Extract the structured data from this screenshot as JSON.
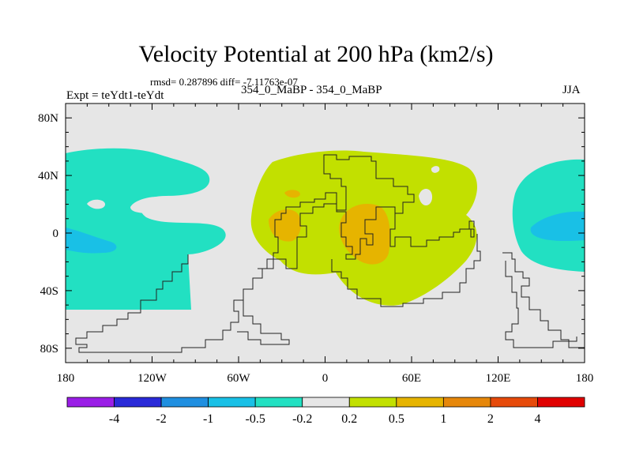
{
  "chart_data": {
    "type": "contour_map",
    "title": "Velocity Potential at 200 hPa (km2/s)",
    "stats": "rmsd= 0.287896 diff= -7.11763e-07",
    "left_label": "Expt = teYdt1-teYdt",
    "center_label": "354_0_MaBP - 354_0_MaBP",
    "right_label": "JJA",
    "xlabels": [
      "180",
      "120W",
      "60W",
      "0",
      "60E",
      "120E",
      "180"
    ],
    "xvalues": [
      -180,
      -120,
      -60,
      0,
      60,
      120,
      180
    ],
    "ylabels": [
      "80N",
      "40N",
      "0",
      "40S",
      "80S"
    ],
    "yvalues": [
      80,
      40,
      0,
      -40,
      -80
    ],
    "xlim": [
      -180,
      180
    ],
    "ylim": [
      -90,
      90
    ],
    "colorbar": {
      "labels": [
        "-4",
        "-2",
        "-1",
        "-0.5",
        "-0.2",
        "0.2",
        "0.5",
        "1",
        "2",
        "4"
      ],
      "colors": [
        "#9a1ee6",
        "#2a2ad8",
        "#1f8fe0",
        "#19c0e6",
        "#22e0c2",
        "#e6e6e6",
        "#c2e000",
        "#e6b400",
        "#e6870a",
        "#e64a0a",
        "#e00000"
      ]
    },
    "fill_colors": {
      "background": "#e6e6e6",
      "neg_02_05": "#22e0c2",
      "neg_05_1": "#19c0e6",
      "pos_02_05": "#c2e000",
      "pos_05_1": "#e6b400"
    }
  }
}
